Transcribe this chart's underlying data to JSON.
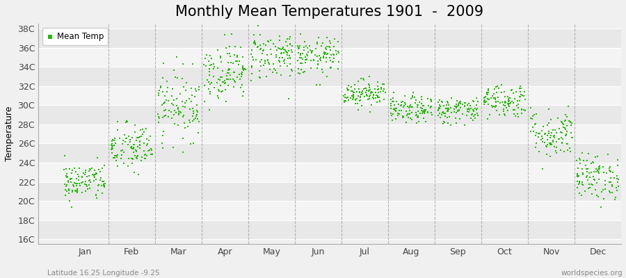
{
  "title": "Monthly Mean Temperatures 1901  -  2009",
  "ylabel": "Temperature",
  "xlabel_labels": [
    "Jan",
    "Feb",
    "Mar",
    "Apr",
    "May",
    "Jun",
    "Jul",
    "Aug",
    "Sep",
    "Oct",
    "Nov",
    "Dec"
  ],
  "ytick_labels": [
    "16C",
    "18C",
    "20C",
    "22C",
    "24C",
    "26C",
    "28C",
    "30C",
    "32C",
    "34C",
    "36C",
    "38C"
  ],
  "ytick_values": [
    16,
    18,
    20,
    22,
    24,
    26,
    28,
    30,
    32,
    34,
    36,
    38
  ],
  "ylim": [
    15.5,
    38.5
  ],
  "xlim": [
    -0.5,
    12.0
  ],
  "dot_color": "#22bb00",
  "dot_size": 3,
  "background_color": "#f0f0f0",
  "plot_bg_color": "#f0f0f0",
  "grid_color": "#ffffff",
  "vline_color": "#999999",
  "legend_label": "Mean Temp",
  "subtitle": "Latitude 16.25 Longitude -9.25",
  "watermark": "worldspecies.org",
  "title_fontsize": 15,
  "label_fontsize": 9,
  "monthly_means": [
    22.0,
    25.5,
    30.0,
    33.5,
    35.2,
    35.0,
    31.3,
    29.5,
    29.5,
    30.5,
    27.0,
    22.5
  ],
  "monthly_stds": [
    1.0,
    1.3,
    1.8,
    1.5,
    1.3,
    1.0,
    0.7,
    0.7,
    0.7,
    0.9,
    1.3,
    1.2
  ],
  "n_years": 109,
  "seed": 42
}
